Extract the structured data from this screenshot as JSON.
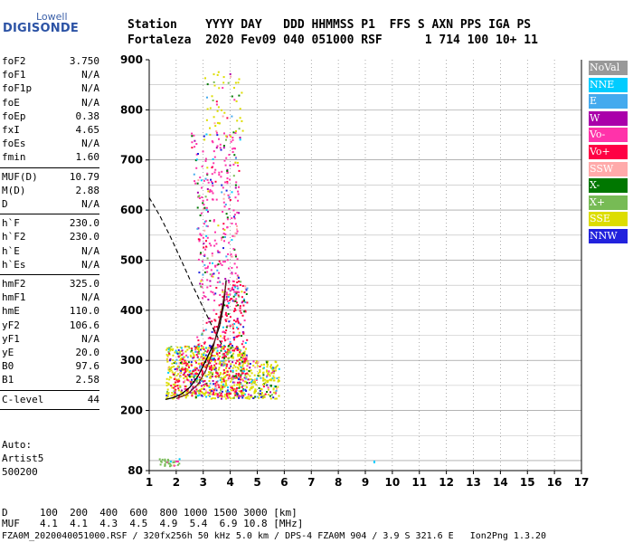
{
  "logo": {
    "top": "Lowell",
    "main": "DIGISONDE"
  },
  "header": {
    "line1": "Station    YYYY DAY   DDD HHMMSS P1  FFS S AXN PPS IGA PS",
    "line2": "Fortaleza  2020 Fev09 040 051000 RSF      1 714 100 10+ 11"
  },
  "scaled_params": {
    "group1": [
      {
        "key": "foF2",
        "value": "3.750"
      },
      {
        "key": "foF1",
        "value": "N/A"
      },
      {
        "key": "foF1p",
        "value": "N/A"
      },
      {
        "key": "foE",
        "value": "N/A"
      },
      {
        "key": "foEp",
        "value": "0.38"
      },
      {
        "key": "fxI",
        "value": "4.65"
      },
      {
        "key": "foEs",
        "value": "N/A"
      },
      {
        "key": "fmin",
        "value": "1.60"
      }
    ],
    "group2": [
      {
        "key": "MUF(D)",
        "value": "10.79"
      },
      {
        "key": "M(D)",
        "value": "2.88"
      },
      {
        "key": "D",
        "value": "N/A"
      }
    ],
    "group3": [
      {
        "key": "h`F",
        "value": "230.0"
      },
      {
        "key": "h`F2",
        "value": "230.0"
      },
      {
        "key": "h`E",
        "value": "N/A"
      },
      {
        "key": "h`Es",
        "value": "N/A"
      }
    ],
    "group4": [
      {
        "key": "hmF2",
        "value": "325.0"
      },
      {
        "key": "hmF1",
        "value": "N/A"
      },
      {
        "key": "hmE",
        "value": "110.0"
      },
      {
        "key": "yF2",
        "value": "106.6"
      },
      {
        "key": "yF1",
        "value": "N/A"
      },
      {
        "key": "yE",
        "value": "20.0"
      },
      {
        "key": "B0",
        "value": "97.6"
      },
      {
        "key": "B1",
        "value": "2.58"
      }
    ],
    "group5": [
      {
        "key": "C-level",
        "value": "44"
      }
    ]
  },
  "autoscaling": {
    "line1": "Auto:",
    "line2": "Artist5",
    "line3": "500200"
  },
  "legend": [
    {
      "label": "NoVal",
      "color": "#999999"
    },
    {
      "label": "NNE",
      "color": "#00ccff"
    },
    {
      "label": "E",
      "color": "#44aaee"
    },
    {
      "label": "W",
      "color": "#aa00aa"
    },
    {
      "label": "Vo-",
      "color": "#ff33aa"
    },
    {
      "label": "Vo+",
      "color": "#ff0044"
    },
    {
      "label": "SSW",
      "color": "#ffaaaa"
    },
    {
      "label": "X-",
      "color": "#007700"
    },
    {
      "label": "X+",
      "color": "#77bb55"
    },
    {
      "label": "SSE",
      "color": "#dddd00"
    },
    {
      "label": "NNW",
      "color": "#2222dd"
    }
  ],
  "chart_data": {
    "type": "scatter",
    "title": "",
    "xlabel": "",
    "ylabel": "",
    "xlim": [
      1,
      17
    ],
    "ylim": [
      80,
      900
    ],
    "x_ticks": [
      "1",
      "2",
      "3",
      "4",
      "5",
      "6",
      "7",
      "8",
      "9",
      "10",
      "11",
      "12",
      "13",
      "14",
      "15",
      "16",
      "17"
    ],
    "y_ticks": [
      "80",
      "200",
      "300",
      "400",
      "500",
      "600",
      "700",
      "800",
      "900"
    ],
    "y_tick_values": [
      80,
      200,
      300,
      400,
      500,
      600,
      700,
      800,
      900
    ],
    "grid": true,
    "echo_regions": [
      {
        "name": "F-trace low",
        "x": [
          1.6,
          5.8
        ],
        "y": [
          225,
          330
        ],
        "color": "#dddd00"
      },
      {
        "name": "F-trace core",
        "x": [
          1.8,
          4.6
        ],
        "y": [
          230,
          460
        ],
        "color": "#ff0044"
      },
      {
        "name": "F-trace spread",
        "x": [
          2.5,
          4.3
        ],
        "y": [
          420,
          760
        ],
        "color": "#ff33aa"
      },
      {
        "name": "upper spread",
        "x": [
          3.0,
          4.5
        ],
        "y": [
          740,
          880
        ],
        "color": "#dddd00"
      },
      {
        "name": "low sporadic",
        "x": [
          1.3,
          2.1
        ],
        "y": [
          90,
          105
        ],
        "color": "#77bb55"
      }
    ],
    "profile_curve": [
      [
        1.6,
        222
      ],
      [
        1.9,
        226
      ],
      [
        2.2,
        233
      ],
      [
        2.5,
        246
      ],
      [
        2.8,
        268
      ],
      [
        3.1,
        300
      ],
      [
        3.4,
        335
      ],
      [
        3.6,
        368
      ],
      [
        3.75,
        410
      ],
      [
        3.85,
        460
      ]
    ],
    "profile_curve_2": [
      [
        2.0,
        224
      ],
      [
        2.4,
        232
      ],
      [
        2.8,
        252
      ],
      [
        3.1,
        280
      ],
      [
        3.3,
        310
      ],
      [
        3.5,
        355
      ],
      [
        3.7,
        405
      ],
      [
        3.85,
        455
      ]
    ],
    "muf_curve": [
      [
        1.0,
        625
      ],
      [
        1.4,
        588
      ],
      [
        1.8,
        545
      ],
      [
        2.2,
        498
      ],
      [
        2.6,
        450
      ],
      [
        3.0,
        405
      ],
      [
        3.4,
        360
      ],
      [
        3.7,
        330
      ]
    ]
  },
  "bottom": {
    "d_label": "D",
    "d_values": "100  200  400  600  800 1000 1500 3000 [km]",
    "muf_label": "MUF",
    "muf_values": "4.1  4.1  4.3  4.5  4.9  5.4  6.9 10.8 [MHz]",
    "footer": "FZA0M_2020040051000.RSF / 320fx256h 50 kHz 5.0 km / DPS-4 FZA0M 904 / 3.9 S 321.6 E   Ion2Png 1.3.20"
  }
}
